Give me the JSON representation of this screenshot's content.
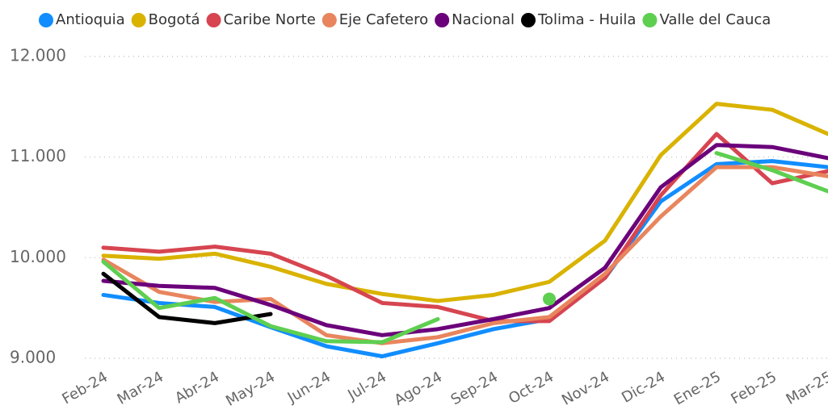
{
  "chart_data": {
    "type": "line",
    "categories": [
      "Feb-24",
      "Mar-24",
      "Abr-24",
      "May-24",
      "Jun-24",
      "Jul-24",
      "Ago-24",
      "Sep-24",
      "Oct-24",
      "Nov-24",
      "Dic-24",
      "Ene-25",
      "Feb-25",
      "Mar-25"
    ],
    "series": [
      {
        "name": "Antioquia",
        "color": "#118DFF",
        "values": [
          9630,
          9550,
          9510,
          9310,
          9120,
          9020,
          9150,
          9290,
          9390,
          9800,
          10560,
          10930,
          10960,
          10900
        ]
      },
      {
        "name": "Bogotá",
        "color": "#D9B300",
        "values": [
          10020,
          9990,
          10040,
          9910,
          9740,
          9640,
          9570,
          9630,
          9760,
          10170,
          11020,
          11530,
          11470,
          11230
        ]
      },
      {
        "name": "Caribe Norte",
        "color": "#D64550",
        "values": [
          10100,
          10060,
          10110,
          10040,
          9820,
          9550,
          9510,
          9370,
          9370,
          9800,
          10620,
          11230,
          10740,
          10860
        ]
      },
      {
        "name": "Eje Cafetero",
        "color": "#E8855E",
        "values": [
          9980,
          9660,
          9560,
          9590,
          9230,
          9150,
          9210,
          9350,
          9410,
          9840,
          10410,
          10900,
          10900,
          10810
        ]
      },
      {
        "name": "Nacional",
        "color": "#6B007B",
        "values": [
          9770,
          9720,
          9700,
          9530,
          9330,
          9230,
          9290,
          9390,
          9500,
          9900,
          10700,
          11120,
          11100,
          10990
        ]
      },
      {
        "name": "Tolima - Huila",
        "color": "#000000",
        "values": [
          9840,
          9410,
          9350,
          9440,
          null,
          null,
          null,
          null,
          null,
          null,
          null,
          null,
          null,
          null
        ]
      },
      {
        "name": "Valle del Cauca",
        "color": "#5ECF50",
        "values": [
          9960,
          9500,
          9600,
          9320,
          9170,
          9160,
          9390,
          null,
          9590,
          null,
          null,
          11040,
          10870,
          10660
        ]
      }
    ],
    "ylim": [
      9000,
      12000
    ],
    "yticks": [
      {
        "value": 9000,
        "label": "9.000"
      },
      {
        "value": 10000,
        "label": "10.000"
      },
      {
        "value": 11000,
        "label": "11.000"
      },
      {
        "value": 12000,
        "label": "12.000"
      }
    ],
    "grid": true,
    "legend": "top"
  }
}
